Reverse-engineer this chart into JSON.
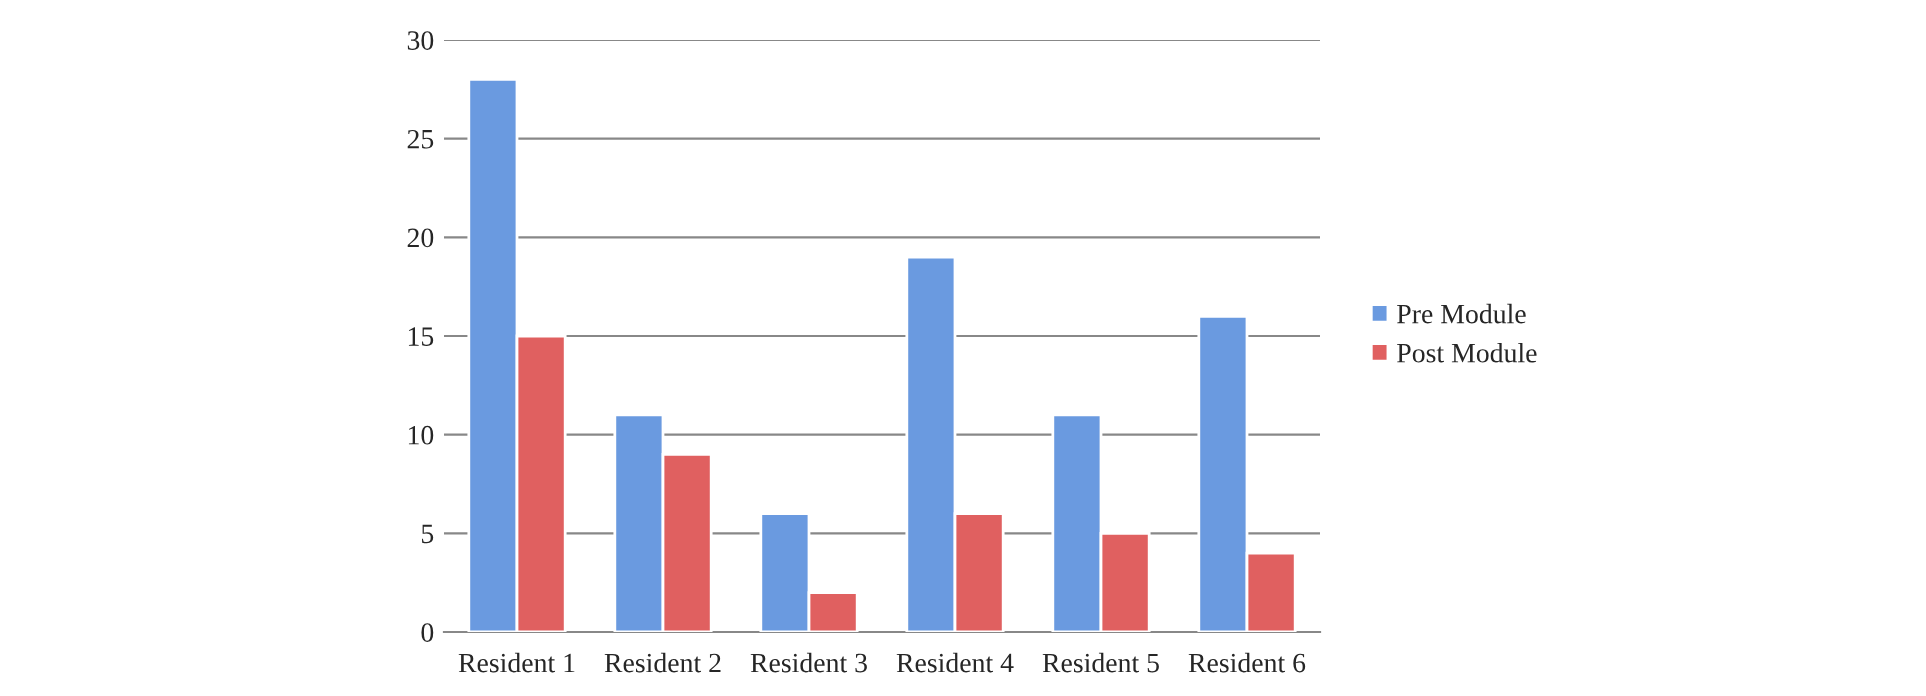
{
  "chart_data": {
    "type": "bar",
    "categories": [
      "Resident 1",
      "Resident 2",
      "Resident 3",
      "Resident 4",
      "Resident 5",
      "Resident 6"
    ],
    "series": [
      {
        "name": "Pre Module",
        "color": "#6a9ae0",
        "values": [
          28,
          11,
          6,
          19,
          11,
          16
        ]
      },
      {
        "name": "Post Module",
        "color": "#e06060",
        "values": [
          15,
          9,
          2,
          6,
          5,
          4
        ]
      }
    ],
    "ylim": [
      0,
      30
    ],
    "yticks": [
      0,
      5,
      10,
      15,
      20,
      25,
      30
    ],
    "grid": "y",
    "legend": "right"
  }
}
